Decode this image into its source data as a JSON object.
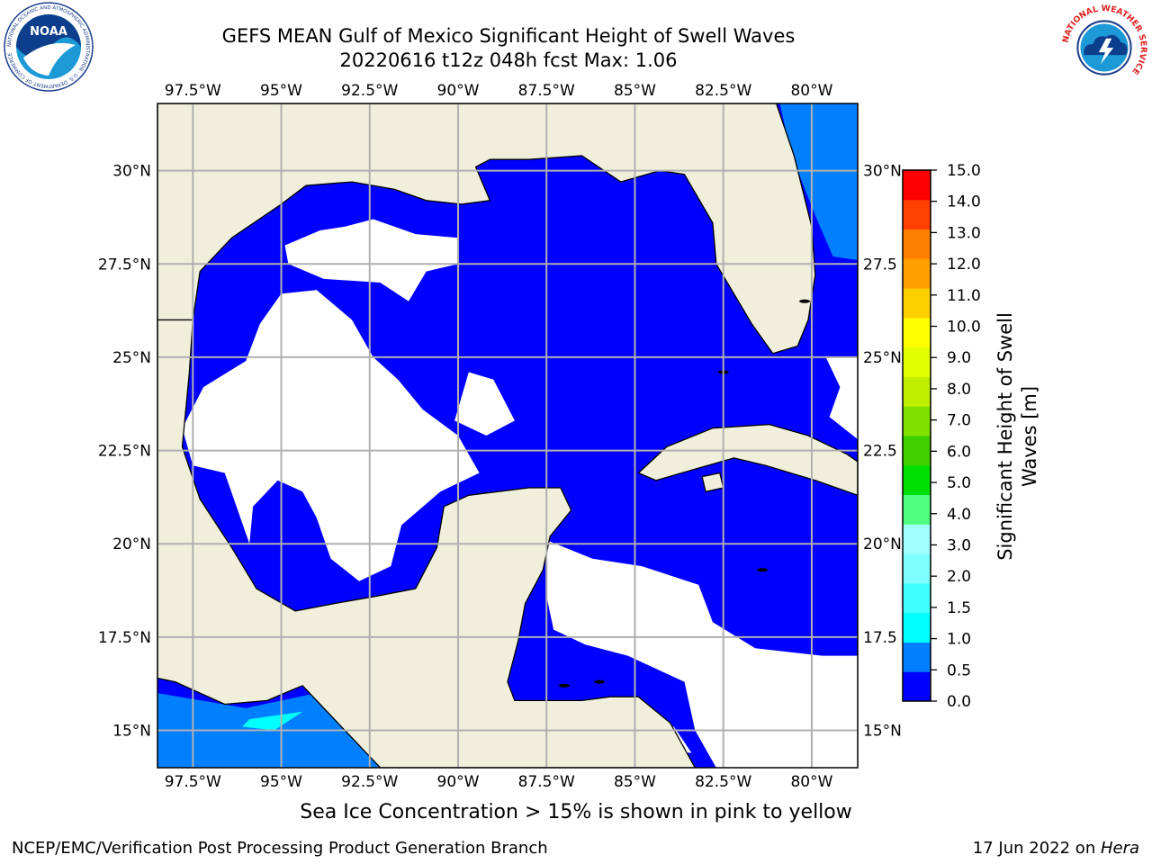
{
  "title_line1": "GEFS MEAN Gulf of Mexico Significant Height of Swell Waves",
  "title_line2": "20220616 t12z 048h fcst   Max: 1.06",
  "subtitle": "Sea Ice Concentration > 15% is shown in pink to yellow",
  "footer_left": "NCEP/EMC/Verification Post Processing Product Generation Branch",
  "footer_right_prefix": "17 Jun 2022 on ",
  "footer_right_machine": "Hera",
  "map": {
    "lon_min": -98.5,
    "lon_max": -78.7,
    "lat_min": 14.0,
    "lat_max": 31.8,
    "lon_ticks": [
      -97.5,
      -95,
      -92.5,
      -90,
      -87.5,
      -85,
      -82.5,
      -80
    ],
    "lon_labels": [
      "97.5°W",
      "95°W",
      "92.5°W",
      "90°W",
      "87.5°W",
      "85°W",
      "82.5°W",
      "80°W"
    ],
    "lat_ticks": [
      15,
      17.5,
      20,
      22.5,
      25,
      27.5,
      30
    ],
    "lat_labels": [
      "15°N",
      "17.5°N",
      "20°N",
      "22.5°N",
      "25°N",
      "27.5°N",
      "30°N"
    ],
    "right_lat_labels": [
      "15°N",
      "17.5",
      "20°N",
      "22.5",
      "25°N",
      "27.5",
      "30°N"
    ],
    "land_color": "#efefdc",
    "grid_color": "#b0b0b0"
  },
  "colorbar": {
    "label_line1": "Significant Height of Swell",
    "label_line2": "Waves [m]",
    "tick_labels": [
      "0.0",
      "0.5",
      "1.0",
      "1.5",
      "2.0",
      "3.0",
      "4.0",
      "5.0",
      "6.0",
      "7.0",
      "8.0",
      "9.0",
      "10.0",
      "11.0",
      "12.0",
      "13.0",
      "14.0",
      "15.0"
    ],
    "colors": [
      "#0000ff",
      "#0080ff",
      "#00ffff",
      "#40ffff",
      "#80ffff",
      "#a0ffff",
      "#50ff80",
      "#00e000",
      "#40d000",
      "#80e000",
      "#c0f000",
      "#e0ff00",
      "#ffff00",
      "#ffd000",
      "#ffa000",
      "#ff8000",
      "#ff4000",
      "#ff0000"
    ]
  },
  "logos": {
    "noaa_text": "NOAA",
    "noaa_ring_text": "NATIONAL OCEANIC AND ATMOSPHERIC ADMINISTRATION · U.S. DEPARTMENT OF COMMERCE",
    "nws_ring_text": "NATIONAL WEATHER SERVICE"
  }
}
